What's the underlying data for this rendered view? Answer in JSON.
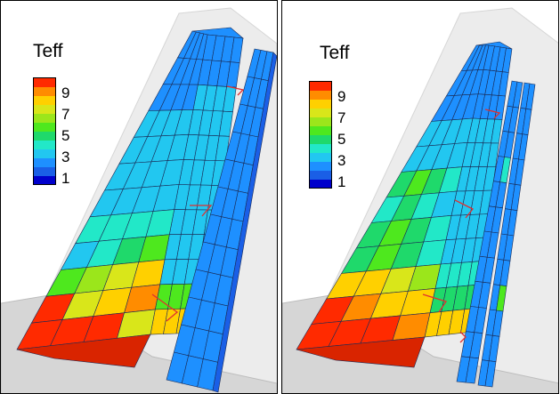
{
  "panels": [
    {
      "legend": {
        "title": "Teff",
        "ticks": [
          "9",
          "7",
          "5",
          "3",
          "1"
        ]
      }
    },
    {
      "legend": {
        "title": "Teff",
        "ticks": [
          "9",
          "7",
          "5",
          "3",
          "1"
        ]
      }
    }
  ],
  "colorscale": [
    "#0000cc",
    "#1a5fe6",
    "#1e90ff",
    "#22c7f0",
    "#22e8c8",
    "#1fd96b",
    "#4ee81e",
    "#9be61b",
    "#d9e61a",
    "#ffd000",
    "#ff8c00",
    "#ff2a00"
  ],
  "colors": {
    "background": "#ffffff",
    "shroud": "#e9e9e9",
    "hub": "#d6d6d6",
    "cell_edge": "#1a2a55",
    "strut": "#e03030"
  }
}
